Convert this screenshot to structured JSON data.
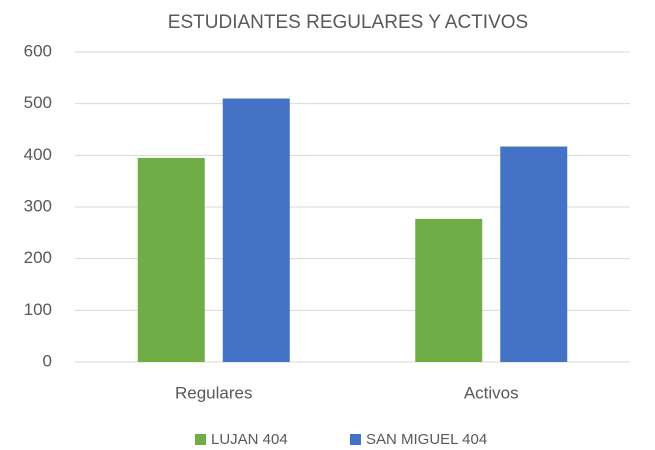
{
  "chart_data": {
    "type": "bar",
    "title": "ESTUDIANTES REGULARES Y ACTIVOS",
    "categories": [
      "Regulares",
      "Activos"
    ],
    "series": [
      {
        "name": "LUJAN 404",
        "color": "#70ad47",
        "values": [
          395,
          277
        ]
      },
      {
        "name": "SAN MIGUEL 404",
        "color": "#4472c4",
        "values": [
          510,
          417
        ]
      }
    ],
    "ylim": [
      0,
      600
    ],
    "yticks": [
      0,
      100,
      200,
      300,
      400,
      500,
      600
    ],
    "grid": true,
    "legend": "bottom"
  }
}
